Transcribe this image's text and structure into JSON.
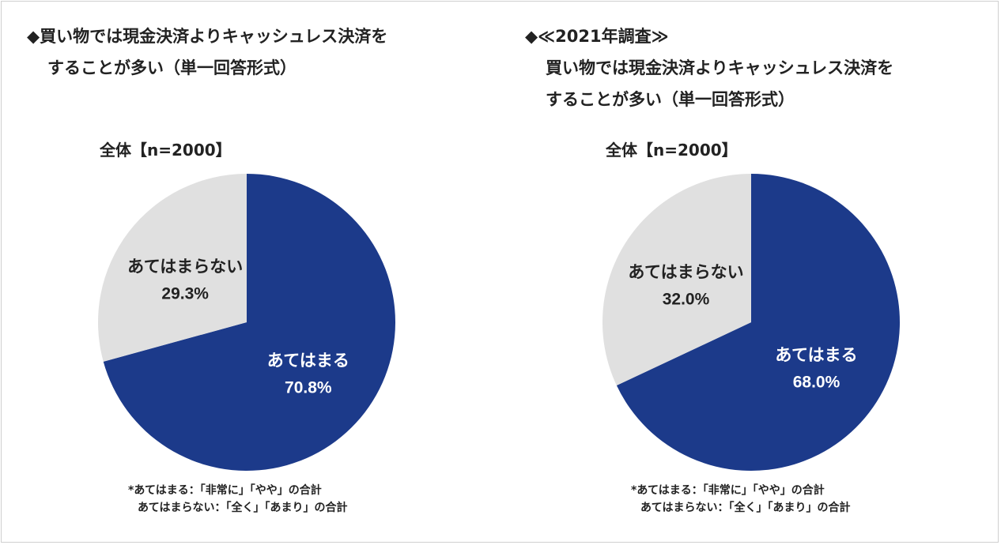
{
  "colors": {
    "applies": "#1c3a8a",
    "not_applies": "#e0e0e0",
    "label_on_dark": "#ffffff",
    "label_on_light": "#222222"
  },
  "chart_data": [
    {
      "type": "pie",
      "title": "◆買い物では現金決済よりキャッシュレス決済をすることが多い（単一回答形式）",
      "title_lines": [
        "◆買い物では現金決済よりキャッシュレス決済を",
        "することが多い（単一回答形式）"
      ],
      "subtitle": "全体【n=2000】",
      "slices": [
        {
          "label": "あてはまる",
          "value": 70.8,
          "value_text": "70.8%",
          "color": "#1c3a8a"
        },
        {
          "label": "あてはまらない",
          "value": 29.3,
          "value_text": "29.3%",
          "color": "#e0e0e0"
        }
      ],
      "notes": [
        "*あてはまる：「非常に」「やや」の合計",
        "あてはまらない：「全く」「あまり」の合計"
      ]
    },
    {
      "type": "pie",
      "title": "◆≪2021年調査≫買い物では現金決済よりキャッシュレス決済をすることが多い（単一回答形式）",
      "title_lines": [
        "◆≪2021年調査≫",
        "買い物では現金決済よりキャッシュレス決済を",
        "することが多い（単一回答形式）"
      ],
      "subtitle": "全体【n=2000】",
      "slices": [
        {
          "label": "あてはまる",
          "value": 68.0,
          "value_text": "68.0%",
          "color": "#1c3a8a"
        },
        {
          "label": "あてはまらない",
          "value": 32.0,
          "value_text": "32.0%",
          "color": "#e0e0e0"
        }
      ],
      "notes": [
        "*あてはまる：「非常に」「やや」の合計",
        "あてはまらない：「全く」「あまり」の合計"
      ]
    }
  ]
}
